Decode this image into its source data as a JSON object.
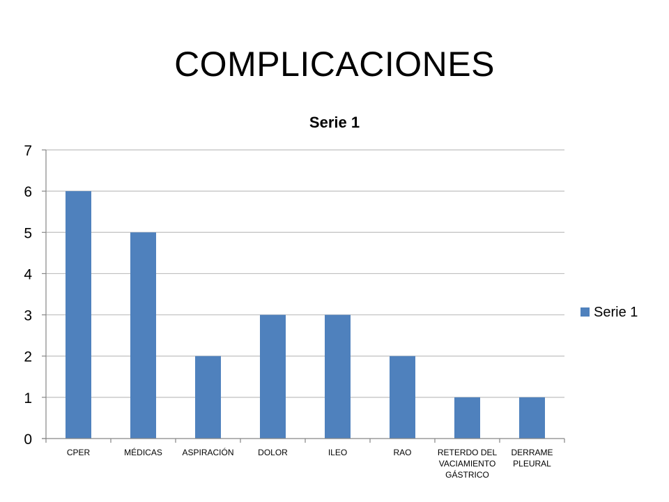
{
  "slide": {
    "title": "COMPLICACIONES"
  },
  "chart_data": {
    "type": "bar",
    "title": "Serie 1",
    "xlabel": "",
    "ylabel": "",
    "ylim": [
      0,
      7
    ],
    "yticks": [
      0,
      1,
      2,
      3,
      4,
      5,
      6,
      7
    ],
    "grid": true,
    "legend_position": "right",
    "categories": [
      "CPER",
      "MÉDICAS",
      "ASPIRACIÓN",
      "DOLOR",
      "ILEO",
      "RAO",
      "RETERDO DEL VACIAMIENTO GÁSTRICO",
      "DERRAME PLEURAL"
    ],
    "series": [
      {
        "name": "Serie 1",
        "color": "#4F81BD",
        "values": [
          6,
          5,
          2,
          3,
          3,
          2,
          1,
          1
        ]
      }
    ],
    "colors": {
      "bar": "#4F81BD",
      "grid": "#BFBFBF",
      "axis": "#868686"
    }
  }
}
